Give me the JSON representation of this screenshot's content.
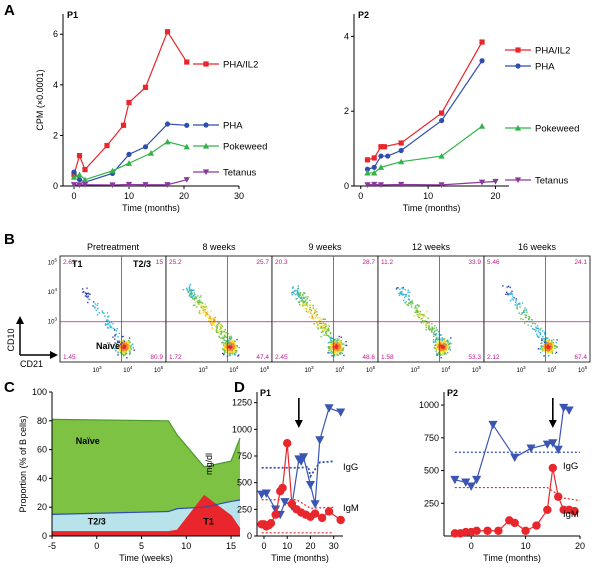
{
  "panel_letters": {
    "a": "A",
    "b": "B",
    "c": "C",
    "d": "D"
  },
  "colors": {
    "pha_il2": "#e8262b",
    "pha": "#2f4fae",
    "pokeweed": "#33b24a",
    "tetanus": "#8a3a9c",
    "naive_fill": "#7dc242",
    "t23_fill": "#b8e3ea",
    "t1_fill": "#e8262b",
    "gate_line": "#c2188b",
    "igg": "#3a55b4",
    "igm": "#e8262b"
  },
  "chart_data": [
    {
      "id": "A-P1",
      "type": "line",
      "panel_title": "P1",
      "xlabel": "Time (months)",
      "ylabel": "CPM (×0.0001)",
      "xlim": [
        -2,
        30
      ],
      "ylim": [
        0,
        6.8
      ],
      "xticks": [
        0,
        10,
        20,
        30
      ],
      "yticks": [
        0,
        2,
        4,
        6
      ],
      "series": [
        {
          "name": "PHA/IL2",
          "marker": "square",
          "color": "#e8262b",
          "points": [
            [
              0,
              0.45
            ],
            [
              1,
              1.2
            ],
            [
              2,
              0.65
            ],
            [
              6,
              1.6
            ],
            [
              9,
              2.4
            ],
            [
              10,
              3.3
            ],
            [
              13,
              3.9
            ],
            [
              17,
              6.1
            ],
            [
              20.5,
              4.9
            ]
          ]
        },
        {
          "name": "PHA",
          "marker": "circle",
          "color": "#2f4fae",
          "points": [
            [
              0,
              0.55
            ],
            [
              1,
              0.25
            ],
            [
              2,
              0.15
            ],
            [
              7,
              0.5
            ],
            [
              10,
              1.25
            ],
            [
              13,
              1.55
            ],
            [
              17,
              2.45
            ],
            [
              20.5,
              2.4
            ]
          ]
        },
        {
          "name": "Pokeweed",
          "marker": "triangle-up",
          "color": "#33b24a",
          "points": [
            [
              0,
              0.35
            ],
            [
              1,
              0.45
            ],
            [
              2,
              0.25
            ],
            [
              7,
              0.6
            ],
            [
              10,
              0.9
            ],
            [
              14,
              1.3
            ],
            [
              17,
              1.75
            ],
            [
              20.5,
              1.55
            ]
          ]
        },
        {
          "name": "Tetanus",
          "marker": "triangle-down",
          "color": "#8a3a9c",
          "points": [
            [
              0,
              0.05
            ],
            [
              1,
              0.04
            ],
            [
              2,
              0.05
            ],
            [
              7,
              0.04
            ],
            [
              10,
              0.06
            ],
            [
              13,
              0.05
            ],
            [
              17,
              0.05
            ],
            [
              20.5,
              0.25
            ]
          ]
        }
      ]
    },
    {
      "id": "A-P2",
      "type": "line",
      "panel_title": "P2",
      "xlabel": "Time (months)",
      "ylabel": "",
      "xlim": [
        -1,
        22
      ],
      "ylim": [
        0,
        4.6
      ],
      "xticks": [
        0,
        10,
        20
      ],
      "yticks": [
        0,
        2,
        4
      ],
      "series": [
        {
          "name": "PHA/IL2",
          "marker": "square",
          "color": "#e8262b",
          "points": [
            [
              1,
              0.7
            ],
            [
              2,
              0.75
            ],
            [
              3,
              1.05
            ],
            [
              3.5,
              1.05
            ],
            [
              6,
              1.15
            ],
            [
              12,
              1.95
            ],
            [
              18,
              3.85
            ]
          ]
        },
        {
          "name": "PHA",
          "marker": "circle",
          "color": "#2f4fae",
          "points": [
            [
              1,
              0.45
            ],
            [
              2,
              0.5
            ],
            [
              3,
              0.8
            ],
            [
              4,
              0.8
            ],
            [
              6,
              0.95
            ],
            [
              12,
              1.75
            ],
            [
              18,
              3.35
            ]
          ]
        },
        {
          "name": "Pokeweed",
          "marker": "triangle-up",
          "color": "#33b24a",
          "points": [
            [
              1,
              0.35
            ],
            [
              2,
              0.35
            ],
            [
              3,
              0.5
            ],
            [
              6,
              0.65
            ],
            [
              12,
              0.8
            ],
            [
              18,
              1.6
            ]
          ]
        },
        {
          "name": "Tetanus",
          "marker": "triangle-down",
          "color": "#8a3a9c",
          "points": [
            [
              1,
              0.03
            ],
            [
              2,
              0.04
            ],
            [
              3,
              0.03
            ],
            [
              6,
              0.04
            ],
            [
              12,
              0.03
            ],
            [
              18,
              0.1
            ],
            [
              20,
              0.12
            ]
          ]
        }
      ]
    },
    {
      "id": "B",
      "type": "scatter",
      "ylabel": "CD10",
      "xlabel": "CD21",
      "gate_labels": {
        "t1": "T1",
        "t23": "T2/3",
        "naive": "Naïve"
      },
      "axis_ticks": [
        "10^3",
        "10^4",
        "10^5"
      ],
      "plots": [
        {
          "title": "Pretreatment",
          "quadrants": {
            "ul": "2.61",
            "ur": "15",
            "ll": "1.45",
            "lr": "80.9"
          }
        },
        {
          "title": "8 weeks",
          "quadrants": {
            "ul": "25.2",
            "ur": "25.7",
            "ll": "1.72",
            "lr": "47.4"
          }
        },
        {
          "title": "9 weeks",
          "quadrants": {
            "ul": "20.3",
            "ur": "28.7",
            "ll": "2.45",
            "lr": "48.6"
          }
        },
        {
          "title": "12 weeks",
          "quadrants": {
            "ul": "11.2",
            "ur": "33.9",
            "ll": "1.58",
            "lr": "53.3"
          }
        },
        {
          "title": "16 weeks",
          "quadrants": {
            "ul": "5.46",
            "ur": "24.1",
            "ll": "2.12",
            "lr": "67.4"
          }
        }
      ]
    },
    {
      "id": "C",
      "type": "area",
      "xlabel": "Time (weeks)",
      "ylabel": "Proportion (% of B cells)",
      "xlim": [
        -5,
        16
      ],
      "ylim": [
        0,
        100
      ],
      "xticks": [
        -5,
        0,
        5,
        10,
        15
      ],
      "yticks": [
        0,
        20,
        40,
        60,
        80,
        100
      ],
      "x": [
        -5,
        8,
        9,
        12,
        15,
        16
      ],
      "series": [
        {
          "name": "T1",
          "boundary": [
            3,
            3,
            4,
            28,
            14,
            5
          ]
        },
        {
          "name": "T2/3",
          "boundary": [
            15,
            17,
            19,
            20,
            24,
            25
          ]
        },
        {
          "name": "Naïve",
          "boundary": [
            81,
            80,
            70,
            48,
            52,
            68
          ]
        }
      ]
    },
    {
      "id": "D-P1",
      "type": "line",
      "panel_title": "P1",
      "xlabel": "Time (months)",
      "ylabel": "mg/dl",
      "xlim": [
        -3,
        34
      ],
      "ylim": [
        0,
        1350
      ],
      "xticks": [
        0,
        10,
        20,
        30
      ],
      "yticks": [
        0,
        250,
        500,
        750,
        1000,
        1250
      ],
      "arrow_x": 15,
      "series": [
        {
          "name": "IgG",
          "marker": "triangle-down",
          "color": "#3a55b4",
          "points": [
            [
              -1,
              390
            ],
            [
              1,
              400
            ],
            [
              5,
              250
            ],
            [
              7,
              200
            ],
            [
              9,
              320
            ],
            [
              12,
              280
            ],
            [
              15,
              720
            ],
            [
              16,
              700
            ],
            [
              17,
              740
            ],
            [
              20,
              480
            ],
            [
              22,
              300
            ],
            [
              24,
              900
            ],
            [
              28,
              1200
            ],
            [
              33,
              1160
            ]
          ]
        },
        {
          "name": "IgM",
          "marker": "circle",
          "color": "#e8262b",
          "points": [
            [
              -1,
              110
            ],
            [
              0,
              110
            ],
            [
              1,
              90
            ],
            [
              2,
              100
            ],
            [
              3,
              120
            ],
            [
              5,
              200
            ],
            [
              7,
              420
            ],
            [
              8,
              450
            ],
            [
              10,
              870
            ],
            [
              12,
              300
            ],
            [
              14,
              250
            ],
            [
              16,
              220
            ],
            [
              18,
              200
            ],
            [
              20,
              180
            ],
            [
              22,
              210
            ],
            [
              25,
              170
            ],
            [
              28,
              230
            ],
            [
              33,
              150
            ]
          ]
        }
      ]
    },
    {
      "id": "D-P2",
      "type": "line",
      "panel_title": "P2",
      "xlabel": "Time (months)",
      "ylabel": "",
      "xlim": [
        -5,
        20
      ],
      "ylim": [
        0,
        1100
      ],
      "xticks": [
        0,
        10,
        20
      ],
      "yticks": [
        250,
        500,
        750,
        1000
      ],
      "arrow_x": 15,
      "series": [
        {
          "name": "IgG",
          "marker": "triangle-down",
          "color": "#3a55b4",
          "points": [
            [
              -3,
              430
            ],
            [
              -1,
              410
            ],
            [
              0,
              380
            ],
            [
              1,
              430
            ],
            [
              4,
              850
            ],
            [
              8,
              600
            ],
            [
              11,
              670
            ],
            [
              14,
              700
            ],
            [
              15,
              710
            ],
            [
              16,
              660
            ],
            [
              17,
              980
            ],
            [
              18,
              960
            ]
          ]
        },
        {
          "name": "IgM",
          "marker": "circle",
          "color": "#e8262b",
          "points": [
            [
              -3,
              20
            ],
            [
              -2,
              20
            ],
            [
              -1,
              30
            ],
            [
              0,
              30
            ],
            [
              1,
              40
            ],
            [
              3,
              40
            ],
            [
              5,
              40
            ],
            [
              7,
              120
            ],
            [
              8,
              100
            ],
            [
              10,
              40
            ],
            [
              12,
              80
            ],
            [
              14,
              200
            ],
            [
              15,
              520
            ],
            [
              16,
              300
            ],
            [
              17,
              200
            ],
            [
              18,
              200
            ],
            [
              19,
              190
            ]
          ]
        }
      ]
    }
  ]
}
